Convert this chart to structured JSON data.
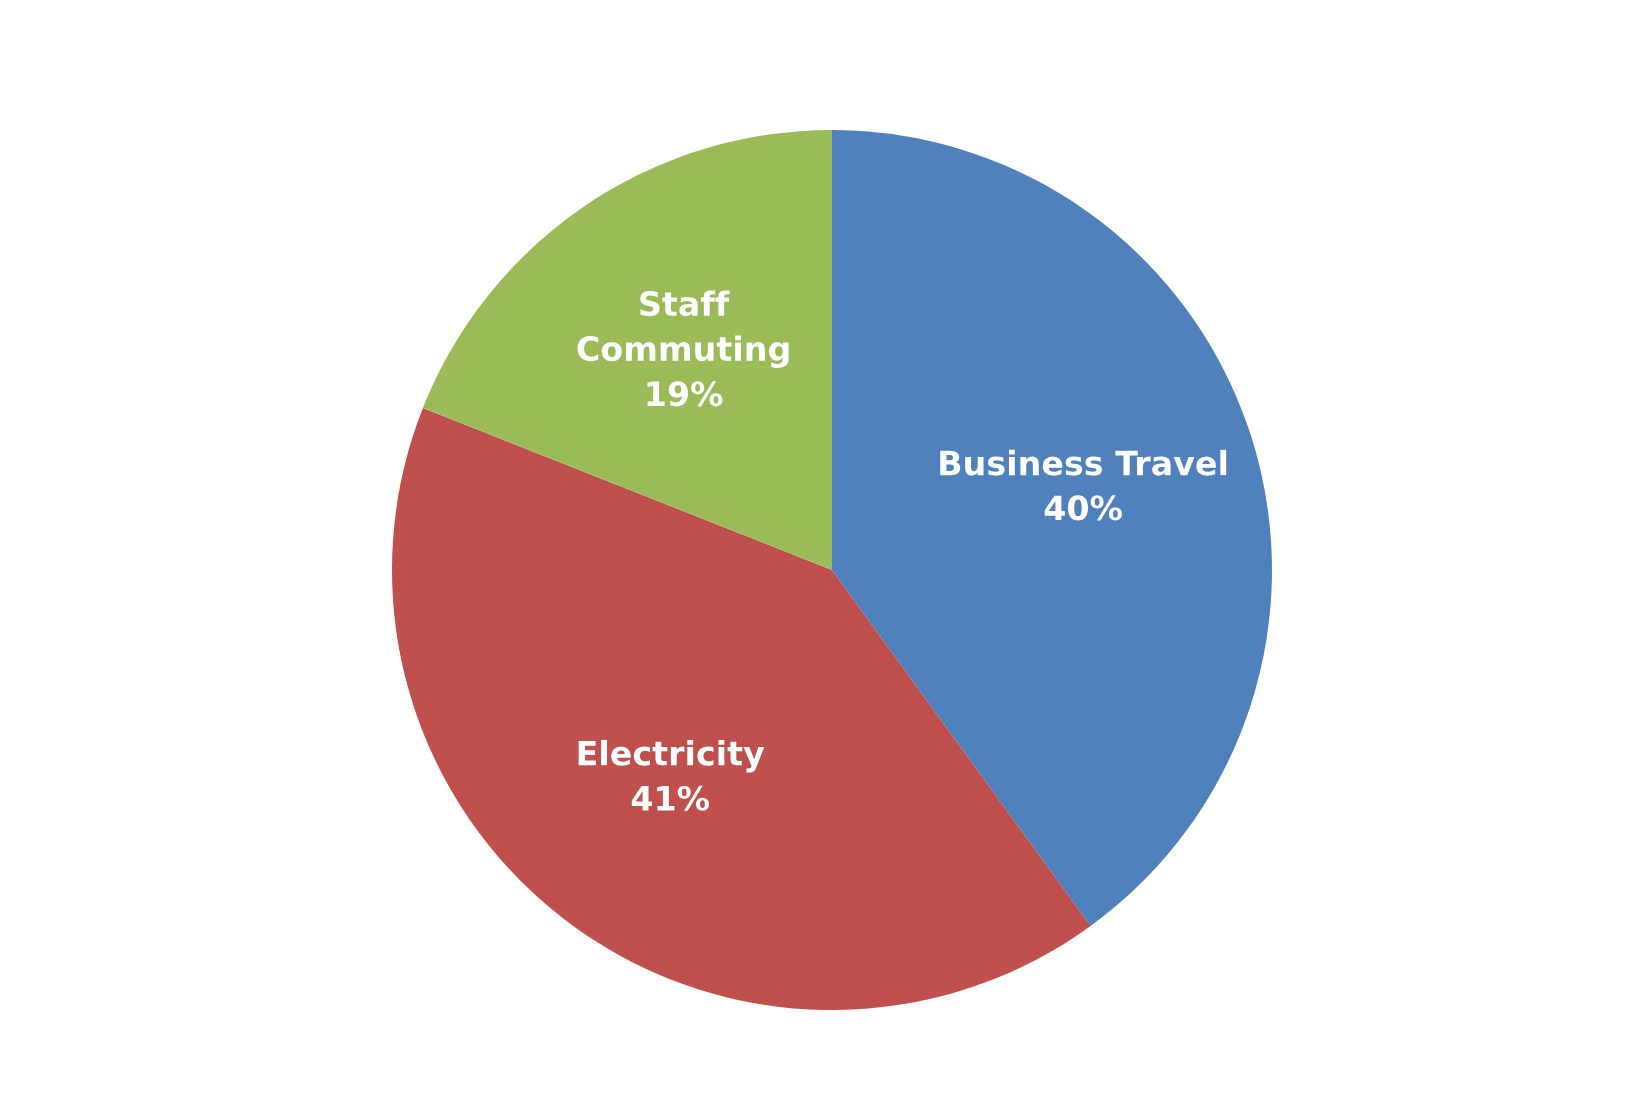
{
  "chart_data": {
    "type": "pie",
    "categories": [
      "Business Travel",
      "Electricity",
      "Staff\nCommuting"
    ],
    "values": [
      40,
      41,
      19
    ],
    "colors": [
      "#4f81bd",
      "#c0504d",
      "#9bbb59"
    ],
    "value_labels": [
      "40%",
      "41%",
      "19%"
    ]
  }
}
